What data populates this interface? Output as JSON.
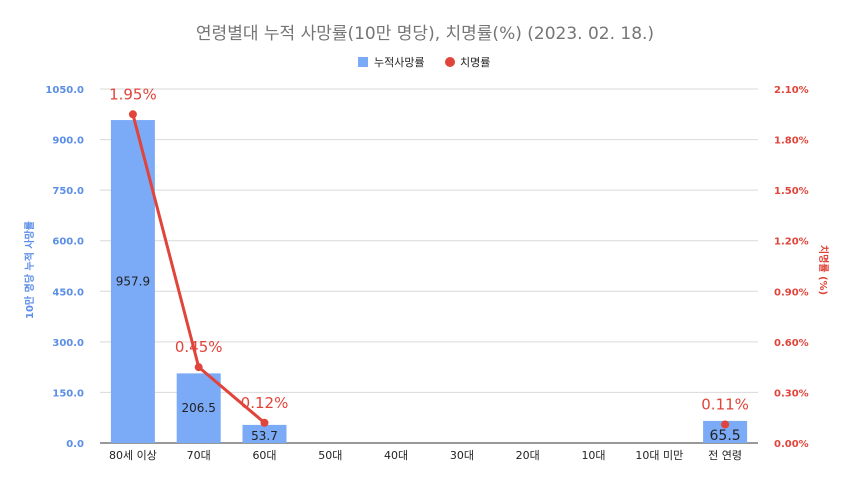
{
  "chart_data": {
    "type": "bar",
    "title": "연령별대 누적 사망률(10만 명당), 치명률(%) (2023. 02. 18.)",
    "categories": [
      "80세 이상",
      "70대",
      "60대",
      "50대",
      "40대",
      "30대",
      "20대",
      "10대",
      "10대 미만",
      "전 연령"
    ],
    "series": [
      {
        "name": "누적사망률",
        "type": "bar",
        "axis": "left",
        "color": "#7baaf7",
        "values": [
          957.9,
          206.5,
          53.7,
          null,
          null,
          null,
          null,
          null,
          null,
          65.5
        ],
        "labels": [
          "957.9",
          "206.5",
          "53.7",
          null,
          null,
          null,
          null,
          null,
          null,
          "65.5"
        ]
      },
      {
        "name": "치명률",
        "type": "line",
        "axis": "right",
        "color": "#e0443a",
        "values": [
          1.95,
          0.45,
          0.12,
          null,
          null,
          null,
          null,
          null,
          null,
          0.11
        ],
        "labels": [
          "1.95%",
          "0.45%",
          "0.12%",
          null,
          null,
          null,
          null,
          null,
          null,
          "0.11%"
        ]
      }
    ],
    "y_left": {
      "label": "10만 명당 누적 사망률",
      "ylim": [
        0,
        1050
      ],
      "ticks": [
        0,
        150,
        300,
        450,
        600,
        750,
        900,
        1050
      ],
      "tick_labels": [
        "0.0",
        "150.0",
        "300.0",
        "450.0",
        "600.0",
        "750.0",
        "900.0",
        "1050.0"
      ]
    },
    "y_right": {
      "label": "치명률 (%)",
      "ylim": [
        0,
        2.1
      ],
      "ticks": [
        0,
        0.3,
        0.6,
        0.9,
        1.2,
        1.5,
        1.8,
        2.1
      ],
      "tick_labels": [
        "0.00%",
        "0.30%",
        "0.60%",
        "0.90%",
        "1.20%",
        "1.50%",
        "1.80%",
        "2.10%"
      ]
    },
    "grid": true,
    "legend_position": "top-center"
  }
}
